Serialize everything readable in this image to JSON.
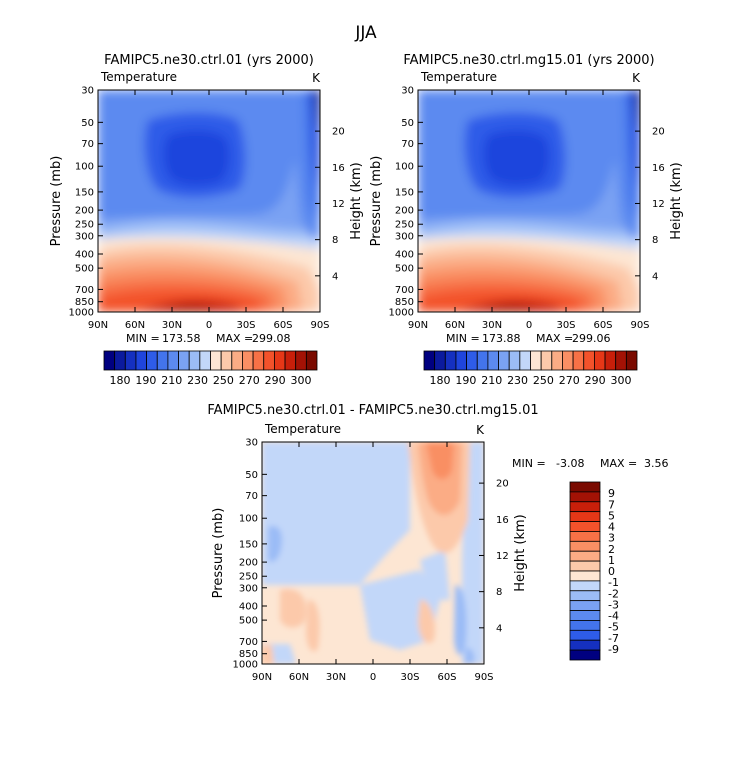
{
  "page_title": "JJA",
  "colors": {
    "blues": [
      "#000080",
      "#0b1a9e",
      "#1530c0",
      "#1f45dd",
      "#2e5ce8",
      "#4374ec",
      "#5c8af0",
      "#7aa2f3",
      "#9bbcf6",
      "#c2d7f9"
    ],
    "reds": [
      "#fde6d3",
      "#fcc9aa",
      "#fbac85",
      "#f98f64",
      "#f77146",
      "#f3522b",
      "#e63717",
      "#c81f0a",
      "#a31205",
      "#7a0a00"
    ]
  },
  "chart_data": [
    {
      "id": "panel-ctrl",
      "type": "contour",
      "title": "FAMIPC5.ne30.ctrl.01 (yrs 2000)",
      "variable": "Temperature",
      "units": "K",
      "xlabel": "",
      "ylabel": "Pressure (mb)",
      "ylabel_right": "Height (km)",
      "x_ticks": [
        "90N",
        "60N",
        "30N",
        "0",
        "30S",
        "60S",
        "90S"
      ],
      "y_ticks": [
        "30",
        "50",
        "70",
        "100",
        "150",
        "200",
        "250",
        "300",
        "400",
        "500",
        "700",
        "850",
        "1000"
      ],
      "height_ticks": [
        "20",
        "16",
        "12",
        "8",
        "4"
      ],
      "stats": {
        "min_label": "MIN =",
        "min": "173.58",
        "max_label": "MAX =",
        "max": "299.08"
      },
      "colorbar_labels": [
        "180",
        "190",
        "210",
        "230",
        "250",
        "270",
        "290",
        "300"
      ]
    },
    {
      "id": "panel-mg15",
      "type": "contour",
      "title": "FAMIPC5.ne30.ctrl.mg15.01 (yrs 2000)",
      "variable": "Temperature",
      "units": "K",
      "xlabel": "",
      "ylabel": "Pressure (mb)",
      "ylabel_right": "Height (km)",
      "x_ticks": [
        "90N",
        "60N",
        "30N",
        "0",
        "30S",
        "60S",
        "90S"
      ],
      "y_ticks": [
        "30",
        "50",
        "70",
        "100",
        "150",
        "200",
        "250",
        "300",
        "400",
        "500",
        "700",
        "850",
        "1000"
      ],
      "height_ticks": [
        "20",
        "16",
        "12",
        "8",
        "4"
      ],
      "stats": {
        "min_label": "MIN =",
        "min": "173.88",
        "max_label": "MAX =",
        "max": "299.06"
      },
      "colorbar_labels": [
        "180",
        "190",
        "210",
        "230",
        "250",
        "270",
        "290",
        "300"
      ]
    },
    {
      "id": "panel-diff",
      "type": "contour",
      "title": "FAMIPC5.ne30.ctrl.01 - FAMIPC5.ne30.ctrl.mg15.01",
      "variable": "Temperature",
      "units": "K",
      "xlabel": "",
      "ylabel": "Pressure (mb)",
      "ylabel_right": "Height (km)",
      "x_ticks": [
        "90N",
        "60N",
        "30N",
        "0",
        "30S",
        "60S",
        "90S"
      ],
      "y_ticks": [
        "30",
        "50",
        "70",
        "100",
        "150",
        "200",
        "250",
        "300",
        "400",
        "500",
        "700",
        "850",
        "1000"
      ],
      "height_ticks": [
        "20",
        "16",
        "12",
        "8",
        "4"
      ],
      "stats": {
        "min_label": "MIN =",
        "min": "-3.08",
        "max_label": "MAX =",
        "max": "3.56"
      },
      "colorbar_labels": [
        "9",
        "7",
        "5",
        "4",
        "3",
        "2",
        "1",
        "0",
        "-1",
        "-2",
        "-3",
        "-4",
        "-5",
        "-7",
        "-9"
      ]
    }
  ]
}
